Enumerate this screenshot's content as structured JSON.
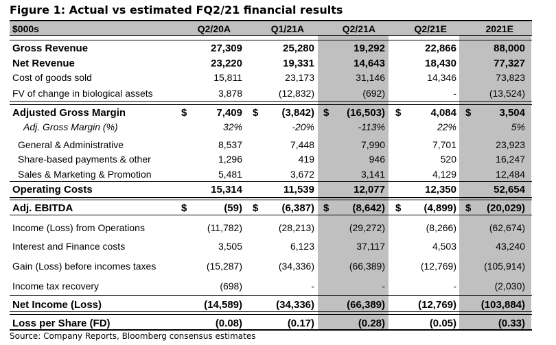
{
  "title": "Figure 1: Actual vs estimated FQ2/21 financial results",
  "header": [
    "$000s",
    "Q2/20A",
    "Q1/21A",
    "Q2/21A",
    "Q2/21E",
    "2021E"
  ],
  "rows": [
    {
      "label": "Gross Revenue",
      "bold": true,
      "values": [
        "27,309",
        "25,280",
        "19,292",
        "22,866",
        "88,000"
      ]
    },
    {
      "label": "Net Revenue",
      "bold": true,
      "values": [
        "23,220",
        "19,331",
        "14,643",
        "18,430",
        "77,327"
      ]
    },
    {
      "label": "Cost of goods sold",
      "values": [
        "15,811",
        "23,173",
        "31,146",
        "14,346",
        "73,823"
      ]
    },
    {
      "label": "FV of change in biological assets",
      "values": [
        "3,878",
        "(12,832)",
        "(692)",
        "-",
        "(13,524)"
      ]
    },
    {
      "label": "Adjusted Gross Margin",
      "bold": true,
      "dollars": true,
      "values": [
        "7,409",
        "(3,842)",
        "(16,503)",
        "4,084",
        "3,504"
      ]
    },
    {
      "label": "Adj. Gross Margin (%)",
      "italic": true,
      "values": [
        "32%",
        "-20%",
        "-113%",
        "22%",
        "5%"
      ]
    },
    {
      "label": "General & Administrative",
      "values": [
        "8,537",
        "7,448",
        "7,990",
        "7,701",
        "23,923"
      ]
    },
    {
      "label": "Share-based payments & other",
      "values": [
        "1,296",
        "419",
        "946",
        "520",
        "16,247"
      ]
    },
    {
      "label": "Sales & Marketing & Promotion",
      "values": [
        "5,481",
        "3,672",
        "3,141",
        "4,129",
        "12,484"
      ]
    },
    {
      "label": "Operating Costs",
      "bold": true,
      "values": [
        "15,314",
        "11,539",
        "12,077",
        "12,350",
        "52,654"
      ]
    },
    {
      "label": "Adj. EBITDA",
      "bold": true,
      "dollars": true,
      "values": [
        "(59)",
        "(6,387)",
        "(8,642)",
        "(4,899)",
        "(20,029)"
      ]
    },
    {
      "label": "Income (Loss) from Operations",
      "values": [
        "(11,782)",
        "(28,213)",
        "(29,272)",
        "(8,266)",
        "(62,674)"
      ]
    },
    {
      "label": "Interest and Finance costs",
      "values": [
        "3,505",
        "6,123",
        "37,117",
        "4,503",
        "43,240"
      ]
    },
    {
      "label": "Gain (Loss) before incomes taxes",
      "values": [
        "(15,287)",
        "(34,336)",
        "(66,389)",
        "(12,769)",
        "(105,914)"
      ]
    },
    {
      "label": "Income tax recovery",
      "values": [
        "(698)",
        "-",
        "-",
        "-",
        "(2,030)"
      ]
    },
    {
      "label": "Net Income (Loss)",
      "bold": true,
      "values": [
        "(14,589)",
        "(34,336)",
        "(66,389)",
        "(12,769)",
        "(103,884)"
      ]
    },
    {
      "label": "Loss per Share (FD)",
      "bold": true,
      "values": [
        "(0.08)",
        "(0.17)",
        "(0.28)",
        "(0.05)",
        "(0.33)"
      ]
    }
  ],
  "currency_symbol": "$",
  "shade_color": "#c0c0c0",
  "source": "Source: Company Reports, Bloomberg consensus estimates"
}
